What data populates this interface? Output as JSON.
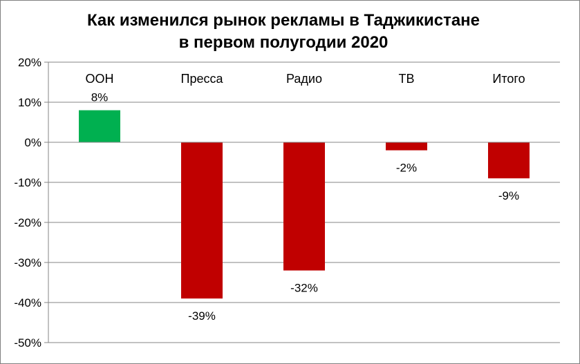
{
  "chart_data": {
    "type": "bar",
    "title_lines": [
      "Как изменился рынок рекламы в Таджикистане",
      "в первом полугодии 2020"
    ],
    "categories": [
      "ООН",
      "Пресса",
      "Радио",
      "ТВ",
      "Итого"
    ],
    "values": [
      8,
      -39,
      -32,
      -2,
      -9
    ],
    "data_labels": [
      "8%",
      "-39%",
      "-32%",
      "-2%",
      "-9%"
    ],
    "bar_colors": [
      "#00b050",
      "#c00000",
      "#c00000",
      "#c00000",
      "#c00000"
    ],
    "ylim": [
      -50,
      20
    ],
    "y_ticks": [
      20,
      10,
      0,
      -10,
      -20,
      -30,
      -40,
      -50
    ],
    "y_tick_labels": [
      "20%",
      "10%",
      "0%",
      "-10%",
      "-20%",
      "-30%",
      "-40%",
      "-50%"
    ],
    "grid": true,
    "category_labels_position": "top",
    "legend": "none"
  }
}
